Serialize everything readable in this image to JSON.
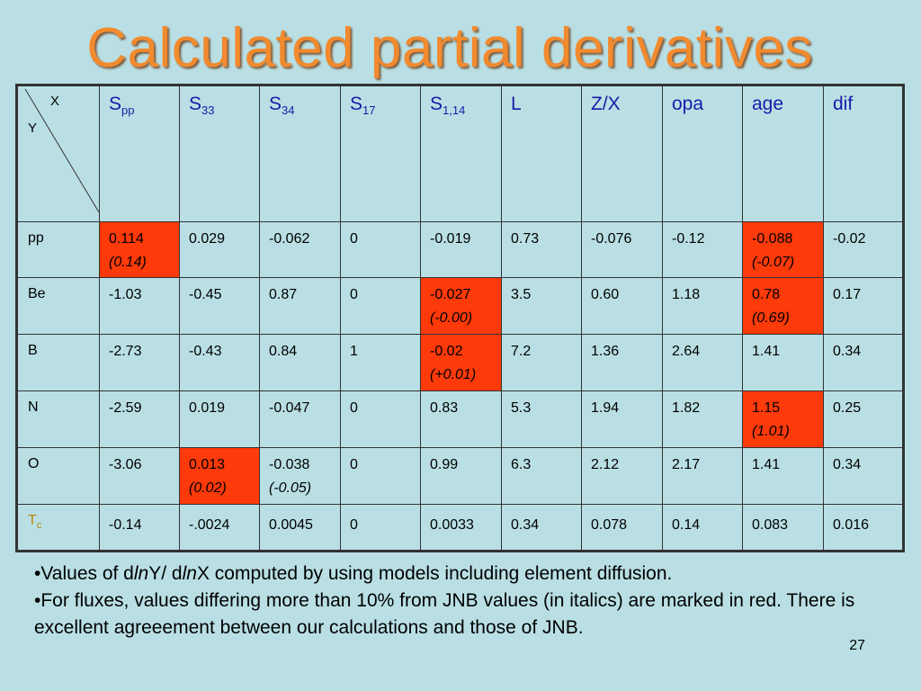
{
  "title": "Calculated partial derivatives",
  "table": {
    "corner_x": "X",
    "corner_y": "Y",
    "columns": [
      {
        "base": "S",
        "sub": "pp"
      },
      {
        "base": "S",
        "sub": "33"
      },
      {
        "base": "S",
        "sub": "34"
      },
      {
        "base": "S",
        "sub": "17"
      },
      {
        "base": "S",
        "sub": "1,14"
      },
      {
        "base": "L",
        "sub": ""
      },
      {
        "base": "Z/X",
        "sub": ""
      },
      {
        "base": "opa",
        "sub": ""
      },
      {
        "base": "age",
        "sub": ""
      },
      {
        "base": "dif",
        "sub": ""
      }
    ],
    "rows": [
      {
        "label": "pp",
        "cells": [
          {
            "v": "0.114",
            "jnb": "(0.14)",
            "red": true
          },
          {
            "v": "0.029"
          },
          {
            "v": "-0.062"
          },
          {
            "v": "0"
          },
          {
            "v": "-0.019"
          },
          {
            "v": "0.73"
          },
          {
            "v": "-0.076"
          },
          {
            "v": "-0.12"
          },
          {
            "v": "-0.088",
            "jnb": "(-0.07)",
            "red": true
          },
          {
            "v": "-0.02"
          }
        ]
      },
      {
        "label": "Be",
        "cells": [
          {
            "v": "-1.03"
          },
          {
            "v": "-0.45"
          },
          {
            "v": "0.87"
          },
          {
            "v": "0"
          },
          {
            "v": "-0.027",
            "jnb": "(-0.00)",
            "red": true
          },
          {
            "v": "3.5"
          },
          {
            "v": "0.60"
          },
          {
            "v": "1.18"
          },
          {
            "v": "0.78",
            "jnb": "(0.69)",
            "red": true
          },
          {
            "v": "0.17"
          }
        ]
      },
      {
        "label": "B",
        "cells": [
          {
            "v": "-2.73"
          },
          {
            "v": "-0.43"
          },
          {
            "v": "0.84"
          },
          {
            "v": "1"
          },
          {
            "v": "-0.02",
            "jnb": "(+0.01)",
            "red": true
          },
          {
            "v": "7.2"
          },
          {
            "v": "1.36"
          },
          {
            "v": "2.64"
          },
          {
            "v": "1.41"
          },
          {
            "v": "0.34"
          }
        ]
      },
      {
        "label": "N",
        "cells": [
          {
            "v": "-2.59"
          },
          {
            "v": "0.019"
          },
          {
            "v": "-0.047"
          },
          {
            "v": "0"
          },
          {
            "v": "0.83"
          },
          {
            "v": "5.3"
          },
          {
            "v": "1.94"
          },
          {
            "v": "1.82"
          },
          {
            "v": "1.15",
            "jnb": "(1.01)",
            "red": true
          },
          {
            "v": "0.25"
          }
        ]
      },
      {
        "label": "O",
        "cells": [
          {
            "v": "-3.06"
          },
          {
            "v": "0.013",
            "jnb": "(0.02)",
            "red": true
          },
          {
            "v": "-0.038",
            "jnb": "(-0.05)"
          },
          {
            "v": "0"
          },
          {
            "v": "0.99"
          },
          {
            "v": "6.3"
          },
          {
            "v": "2.12"
          },
          {
            "v": "2.17"
          },
          {
            "v": "1.41"
          },
          {
            "v": "0.34"
          }
        ]
      }
    ],
    "tc_row": {
      "label_base": "T",
      "label_sub": "c",
      "values": [
        "-0.14",
        "-.0024",
        "0.0045",
        "0",
        "0.0033",
        "0.34",
        "0.078",
        "0.14",
        "0.083",
        "0.016"
      ]
    }
  },
  "notes": {
    "line1_prefix": "•Values of   d",
    "ln1": "ln",
    "mid1": "Y/ d",
    "ln2": "ln",
    "line1_suffix": "X  computed  by using models including element diffusion.",
    "line2": "•For fluxes, values differing more than 10% from JNB values (in italics) are marked in red. There is excellent agreeement between our calculations and those of JNB."
  },
  "page_number": "27",
  "colors": {
    "title": "#f28a2e",
    "highlight": "#fd3a0a",
    "background": "#b9dfe4",
    "header_text": "#1a1aa8",
    "tc_text": "#b8860b"
  }
}
